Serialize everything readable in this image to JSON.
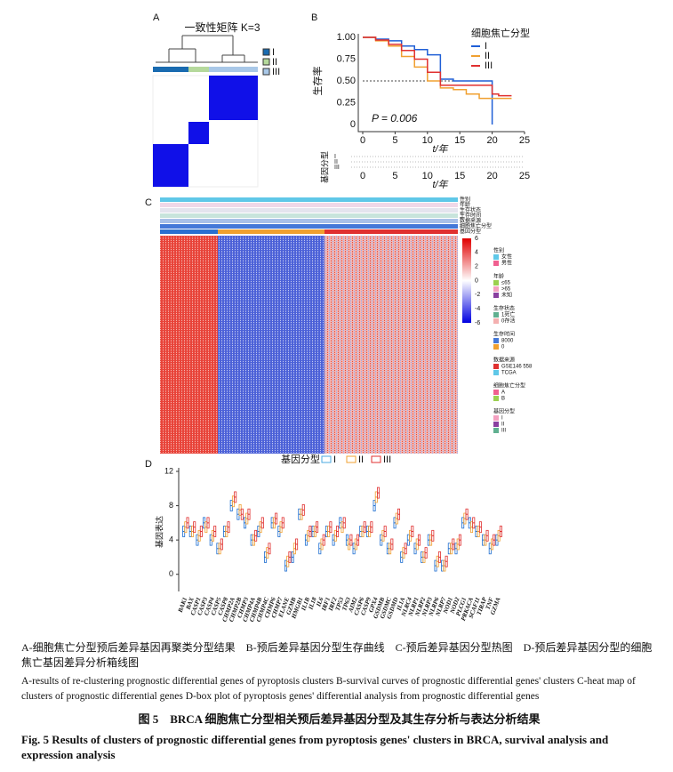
{
  "panels": {
    "A": {
      "label": "A",
      "title": "一致性矩阵 K=3",
      "legend": [
        "I",
        "II",
        "III"
      ]
    },
    "B": {
      "label": "B",
      "risk_table_label": "基因分型",
      "risk_rows": [
        "I",
        "II",
        "III"
      ],
      "risk_xlabel": "t/年"
    },
    "C": {
      "label": "C",
      "colorbar_ticks": [
        6,
        4,
        2,
        0,
        -2,
        -4,
        -6
      ],
      "row_labels": [
        "性别",
        "年龄",
        "生存状态",
        "生存时间",
        "数据来源",
        "细胞焦亡分型",
        "基因分型"
      ],
      "legend": [
        {
          "title": "性别",
          "items": [
            "女性",
            "男性"
          ]
        },
        {
          "title": "年龄",
          "items": [
            "≤65",
            ">65",
            "未知"
          ]
        },
        {
          "title": "生存状态",
          "items": [
            "1死亡",
            "0存活"
          ]
        },
        {
          "title": "生存时间",
          "items": [
            "8000",
            "0"
          ]
        },
        {
          "title": "数据来源",
          "items": [
            "GSE146 558",
            "TCGA"
          ]
        },
        {
          "title": "细胞焦亡分型",
          "items": [
            "A",
            "B"
          ]
        },
        {
          "title": "基因分型",
          "items": [
            "I",
            "II",
            "III"
          ]
        }
      ],
      "bottom_legend": {
        "title": "基因分型",
        "items": [
          "I",
          "II",
          "III"
        ]
      }
    },
    "D": {
      "label": "D"
    }
  },
  "chart_data": [
    {
      "type": "line",
      "ylabel": "生存率",
      "xlabel": "t/年",
      "legend_title": "细胞焦亡分型",
      "annotation": "P = 0.006",
      "reference_line": 0.5,
      "x": [
        0,
        2,
        4,
        6,
        8,
        10,
        12,
        14,
        16,
        18,
        20,
        21,
        23
      ],
      "series": [
        {
          "name": "I",
          "color": "#1f5fd6",
          "values": [
            1,
            0.98,
            0.96,
            0.9,
            0.86,
            0.8,
            0.52,
            0.5,
            0.5,
            0.5,
            0,
            null,
            null
          ]
        },
        {
          "name": "II",
          "color": "#f0a030",
          "values": [
            1,
            0.96,
            0.9,
            0.78,
            0.66,
            0.5,
            0.42,
            0.4,
            0.35,
            0.3,
            0.3,
            0.3,
            0.3
          ]
        },
        {
          "name": "III",
          "color": "#e03030",
          "values": [
            1,
            0.97,
            0.92,
            0.85,
            0.75,
            0.6,
            0.45,
            0.45,
            0.45,
            0.45,
            0.35,
            0.33,
            0.33
          ]
        }
      ],
      "xlim": [
        0,
        25
      ],
      "xticks": [
        0,
        5,
        10,
        15,
        20,
        25
      ],
      "ylim": [
        0,
        1
      ],
      "yticks": [
        0,
        {
          "value": 0.25,
          "label": "0.25"
        },
        {
          "value": 0.5,
          "label": "0.50"
        },
        {
          "value": 0.75,
          "label": "0.75"
        },
        {
          "value": 1,
          "label": "1.00"
        }
      ]
    },
    {
      "type": "box",
      "ylabel": "基因表达",
      "categories": [
        "BAK1",
        "BAX",
        "CASP1",
        "CASP3",
        "CASP4",
        "CASP5",
        "CASP8",
        "CHMP2A",
        "CHMP2B",
        "CHMP3",
        "CHMP4A",
        "CHMP4B",
        "CHMP4C",
        "CHMP6",
        "CHMP7",
        "ELANE",
        "GZMB",
        "HMGB1",
        "IL1B",
        "IL18",
        "IL6",
        "IRF1",
        "IRF2",
        "TP53",
        "TP63",
        "AIM2",
        "CASP6",
        "CASP9",
        "GPX4",
        "GSDMB",
        "GSDMC",
        "GSDMD",
        "IL1A",
        "NLRC4",
        "NLRP1",
        "NLRP2",
        "NLRP3",
        "NLRP6",
        "NLRP7",
        "NOD1",
        "NOD2",
        "PLCG1",
        "PRKACA",
        "SCAF11",
        "TIRAP",
        "TNF",
        "GZMA"
      ],
      "series": [
        {
          "name": "I",
          "color": "#1f6fd1",
          "values": [
            5,
            5,
            4,
            6,
            4,
            3,
            5,
            8,
            7,
            6,
            4,
            5,
            2,
            6,
            5,
            1,
            2,
            7,
            4,
            5,
            3,
            5,
            4,
            6,
            4,
            3,
            5,
            5,
            8,
            4,
            3,
            6,
            2,
            4,
            3,
            2,
            4,
            1,
            1,
            3,
            3,
            6,
            6,
            5,
            4,
            3,
            4
          ]
        },
        {
          "name": "II",
          "color": "#f0a030",
          "values": [
            5.5,
            5,
            4.5,
            5.5,
            4.5,
            3,
            5,
            8.5,
            7.5,
            6.5,
            4,
            5.5,
            2.5,
            6,
            5.5,
            1.5,
            3,
            7,
            4.5,
            5,
            3.5,
            5,
            4.5,
            5.5,
            3.5,
            3.5,
            5,
            5,
            9,
            4.5,
            3,
            6.5,
            2.5,
            4.5,
            3.5,
            2,
            4,
            1.5,
            1,
            3,
            3.5,
            6.5,
            5.5,
            5,
            4,
            3.5,
            4.5
          ]
        },
        {
          "name": "III",
          "color": "#e03030",
          "values": [
            6,
            5.5,
            5,
            6,
            5,
            3.5,
            5.5,
            9,
            7,
            7,
            4.5,
            6,
            3,
            6.5,
            6,
            2,
            3.5,
            7.5,
            5,
            5.5,
            4,
            5.5,
            5,
            6,
            4,
            4,
            5.5,
            5.5,
            9.5,
            5,
            3.5,
            7,
            3,
            5,
            4,
            2.5,
            4.5,
            2,
            1.5,
            3.5,
            4,
            7,
            6,
            5.5,
            4.5,
            4,
            5
          ]
        }
      ],
      "ylim": [
        -2,
        12
      ],
      "yticks": [
        0,
        4,
        8,
        12
      ]
    }
  ],
  "caption": {
    "panels_zh": "A-细胞焦亡分型预后差异基因再聚类分型结果　B-预后差异基因分型生存曲线　C-预后差异基因分型热图　D-预后差异基因分型的细胞焦亡基因差异分析箱线图",
    "panels_en": "A-results of re-clustering prognostic differential genes of pyroptosis clusters  B-survival curves of prognostic differential genes' clusters  C-heat map of clusters of prognostic differential genes  D-box plot of pyroptosis genes' differential analysis from prognostic differential genes",
    "title_zh": "图 5　BRCA 细胞焦亡分型相关预后差异基因分型及其生存分析与表达分析结果",
    "title_en": "Fig. 5  Results of clusters of prognostic differential genes from pyroptosis genes' clusters in BRCA, survival analysis and expression analysis"
  }
}
